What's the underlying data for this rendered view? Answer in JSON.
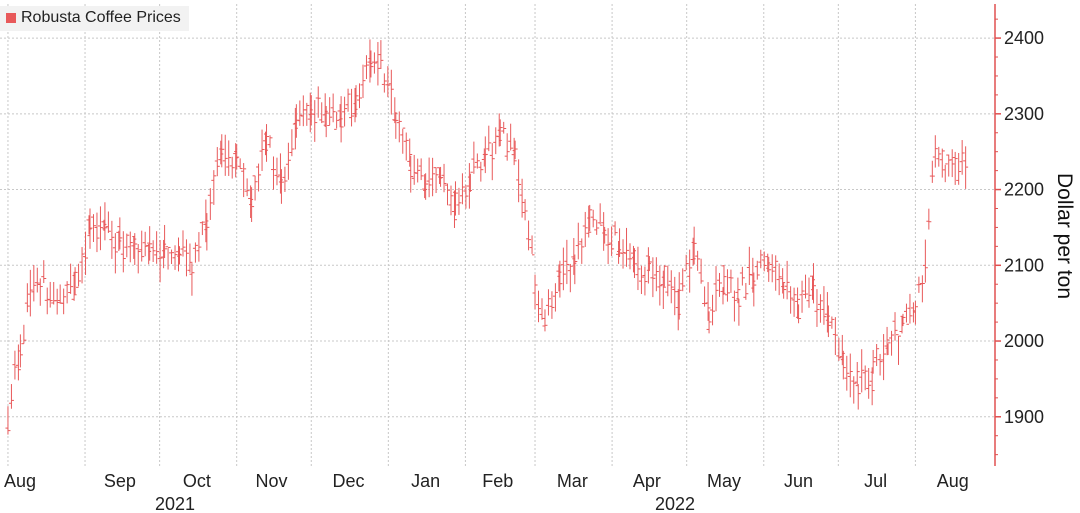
{
  "legend": {
    "label": "Robusta Coffee Prices"
  },
  "colors": {
    "series": "#e8595a",
    "axis": "#e05050",
    "grid": "#c8c8c8",
    "text": "#222222"
  },
  "chart_data": {
    "type": "line",
    "style": "ohlc-bars",
    "series": [
      {
        "name": "Robusta Coffee Prices"
      }
    ],
    "ylabel": "Dollar per ton",
    "ylim": [
      1835,
      2445
    ],
    "y_ticks": [
      1900,
      2000,
      2100,
      2200,
      2300,
      2400
    ],
    "x_tick_labels": [
      "Aug",
      "Sep",
      "Oct",
      "Nov",
      "Dec",
      "Jan",
      "Feb",
      "Mar",
      "Apr",
      "May",
      "Jun",
      "Jul",
      "Aug"
    ],
    "year_labels": [
      "2021",
      "2022"
    ],
    "grid": true,
    "legend_position": "top-left",
    "points": [
      [
        "2021-08-01",
        1900
      ],
      [
        "2021-08-06",
        1980
      ],
      [
        "2021-08-10",
        2060
      ],
      [
        "2021-08-14",
        2080
      ],
      [
        "2021-08-18",
        2070
      ],
      [
        "2021-08-22",
        2050
      ],
      [
        "2021-08-28",
        2070
      ],
      [
        "2021-09-03",
        2150
      ],
      [
        "2021-09-09",
        2140
      ],
      [
        "2021-09-15",
        2130
      ],
      [
        "2021-09-21",
        2125
      ],
      [
        "2021-09-27",
        2120
      ],
      [
        "2021-10-03",
        2110
      ],
      [
        "2021-10-09",
        2120
      ],
      [
        "2021-10-14",
        2100
      ],
      [
        "2021-10-20",
        2150
      ],
      [
        "2021-10-26",
        2250
      ],
      [
        "2021-11-01",
        2230
      ],
      [
        "2021-11-07",
        2190
      ],
      [
        "2021-11-13",
        2270
      ],
      [
        "2021-11-19",
        2200
      ],
      [
        "2021-11-25",
        2280
      ],
      [
        "2021-12-01",
        2300
      ],
      [
        "2021-12-07",
        2300
      ],
      [
        "2021-12-13",
        2290
      ],
      [
        "2021-12-19",
        2320
      ],
      [
        "2021-12-25",
        2360
      ],
      [
        "2021-12-29",
        2380
      ],
      [
        "2022-01-04",
        2300
      ],
      [
        "2022-01-10",
        2230
      ],
      [
        "2022-01-16",
        2200
      ],
      [
        "2022-01-22",
        2210
      ],
      [
        "2022-01-28",
        2180
      ],
      [
        "2022-02-03",
        2220
      ],
      [
        "2022-02-09",
        2250
      ],
      [
        "2022-02-15",
        2270
      ],
      [
        "2022-02-21",
        2250
      ],
      [
        "2022-02-25",
        2170
      ],
      [
        "2022-03-01",
        2080
      ],
      [
        "2022-03-05",
        2030
      ],
      [
        "2022-03-11",
        2090
      ],
      [
        "2022-03-17",
        2110
      ],
      [
        "2022-03-23",
        2160
      ],
      [
        "2022-03-29",
        2140
      ],
      [
        "2022-04-04",
        2130
      ],
      [
        "2022-04-10",
        2100
      ],
      [
        "2022-04-16",
        2090
      ],
      [
        "2022-04-22",
        2080
      ],
      [
        "2022-04-28",
        2050
      ],
      [
        "2022-05-04",
        2130
      ],
      [
        "2022-05-10",
        2030
      ],
      [
        "2022-05-16",
        2080
      ],
      [
        "2022-05-22",
        2060
      ],
      [
        "2022-05-28",
        2090
      ],
      [
        "2022-06-03",
        2110
      ],
      [
        "2022-06-09",
        2080
      ],
      [
        "2022-06-15",
        2050
      ],
      [
        "2022-06-21",
        2070
      ],
      [
        "2022-06-27",
        2030
      ],
      [
        "2022-07-03",
        1960
      ],
      [
        "2022-07-09",
        1940
      ],
      [
        "2022-07-15",
        1960
      ],
      [
        "2022-07-21",
        1990
      ],
      [
        "2022-07-27",
        2020
      ],
      [
        "2022-08-01",
        2040
      ],
      [
        "2022-08-05",
        2120
      ],
      [
        "2022-08-09",
        2250
      ],
      [
        "2022-08-13",
        2240
      ],
      [
        "2022-08-17",
        2230
      ],
      [
        "2022-08-22",
        2245
      ]
    ]
  }
}
